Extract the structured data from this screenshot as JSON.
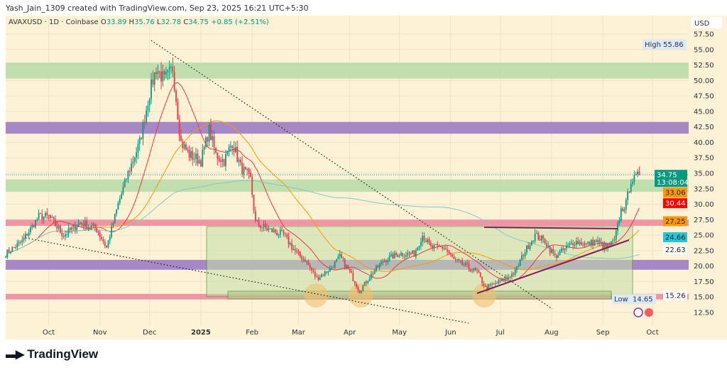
{
  "header": {
    "credit": "Yash_Jain_1309 created with TradingView.com, Sep 23, 2025 16:21 UTC+5:30"
  },
  "legend": {
    "symbol": "AVAXUSD · 1D · Coinbase",
    "o_label": "O",
    "o": "33.89",
    "h_label": "H",
    "h": "35.76",
    "l_label": "L",
    "l": "32.78",
    "c_label": "C",
    "c": "34.75",
    "change": "+0.85 (+2.51%)"
  },
  "brand": {
    "name": "TradingView",
    "icon": "tradingview-logo"
  },
  "colors": {
    "bg": "#fdf1d6",
    "up": "#089981",
    "down": "#f23645",
    "green_zone": "#b9dcaa",
    "purple_zone": "#9c7cc4",
    "pink_zone": "#f08ba0",
    "range_box": "#c6dfa8"
  },
  "chart_data": {
    "type": "candlestick",
    "currency": "USD",
    "ylim": [
      11,
      60
    ],
    "y_ticks": [
      "57.50",
      "55.00",
      "52.50",
      "50.00",
      "47.50",
      "45.00",
      "42.50",
      "40.00",
      "37.50",
      "35.00",
      "32.50",
      "30.00",
      "27.50",
      "25.00",
      "22.50",
      "20.00",
      "17.50",
      "15.00",
      "12.50"
    ],
    "y_tick_values": [
      57.5,
      55,
      52.5,
      50,
      47.5,
      45,
      42.5,
      40,
      37.5,
      35,
      32.5,
      30,
      27.5,
      25,
      22.5,
      20,
      17.5,
      15,
      12.5
    ],
    "x_ticks": [
      {
        "label": "Oct",
        "date": "2024-10-01"
      },
      {
        "label": "Nov",
        "date": "2024-11-01"
      },
      {
        "label": "Dec",
        "date": "2024-12-01"
      },
      {
        "label": "2025",
        "date": "2025-01-01"
      },
      {
        "label": "Feb",
        "date": "2025-02-01"
      },
      {
        "label": "Mar",
        "date": "2025-03-01"
      },
      {
        "label": "Apr",
        "date": "2025-04-01"
      },
      {
        "label": "May",
        "date": "2025-05-01"
      },
      {
        "label": "Jun",
        "date": "2025-06-01"
      },
      {
        "label": "Jul",
        "date": "2025-07-01"
      },
      {
        "label": "Aug",
        "date": "2025-08-01"
      },
      {
        "label": "Sep",
        "date": "2025-09-01"
      },
      {
        "label": "Oct",
        "date": "2025-10-01"
      }
    ],
    "xlim": [
      "2024-09-05",
      "2025-10-28"
    ],
    "close_path": [
      [
        "2024-09-05",
        22
      ],
      [
        "2024-09-15",
        24
      ],
      [
        "2024-09-25",
        28
      ],
      [
        "2024-10-01",
        28
      ],
      [
        "2024-10-10",
        25
      ],
      [
        "2024-10-20",
        27
      ],
      [
        "2024-10-30",
        26
      ],
      [
        "2024-11-05",
        23
      ],
      [
        "2024-11-12",
        30
      ],
      [
        "2024-11-18",
        35
      ],
      [
        "2024-11-25",
        40
      ],
      [
        "2024-12-01",
        48
      ],
      [
        "2024-12-05",
        52
      ],
      [
        "2024-12-10",
        50
      ],
      [
        "2024-12-15",
        52
      ],
      [
        "2024-12-20",
        40
      ],
      [
        "2024-12-25",
        38
      ],
      [
        "2025-01-01",
        37
      ],
      [
        "2025-01-06",
        42
      ],
      [
        "2025-01-10",
        38
      ],
      [
        "2025-01-15",
        37
      ],
      [
        "2025-01-20",
        40
      ],
      [
        "2025-01-25",
        36
      ],
      [
        "2025-01-31",
        34
      ],
      [
        "2025-02-03",
        27
      ],
      [
        "2025-02-10",
        26
      ],
      [
        "2025-02-20",
        25
      ],
      [
        "2025-02-28",
        22
      ],
      [
        "2025-03-05",
        21
      ],
      [
        "2025-03-12",
        18
      ],
      [
        "2025-03-20",
        19.5
      ],
      [
        "2025-03-26",
        21.5
      ],
      [
        "2025-04-01",
        19
      ],
      [
        "2025-04-07",
        16
      ],
      [
        "2025-04-15",
        19
      ],
      [
        "2025-04-22",
        21
      ],
      [
        "2025-05-01",
        22
      ],
      [
        "2025-05-10",
        22
      ],
      [
        "2025-05-15",
        25
      ],
      [
        "2025-05-20",
        23
      ],
      [
        "2025-05-28",
        23
      ],
      [
        "2025-06-03",
        21
      ],
      [
        "2025-06-10",
        20
      ],
      [
        "2025-06-17",
        19
      ],
      [
        "2025-06-22",
        16.5
      ],
      [
        "2025-07-01",
        17.5
      ],
      [
        "2025-07-10",
        19
      ],
      [
        "2025-07-15",
        22
      ],
      [
        "2025-07-22",
        25
      ],
      [
        "2025-07-28",
        24
      ],
      [
        "2025-08-03",
        21.5
      ],
      [
        "2025-08-10",
        23
      ],
      [
        "2025-08-15",
        24
      ],
      [
        "2025-08-22",
        23.5
      ],
      [
        "2025-08-28",
        24
      ],
      [
        "2025-09-03",
        23
      ],
      [
        "2025-09-08",
        24
      ],
      [
        "2025-09-12",
        29
      ],
      [
        "2025-09-15",
        30
      ],
      [
        "2025-09-18",
        34
      ],
      [
        "2025-09-20",
        34
      ],
      [
        "2025-09-23",
        34.75
      ]
    ],
    "zones": [
      {
        "type": "green",
        "from": 50.3,
        "to": 52.9
      },
      {
        "type": "purple",
        "from": 41.4,
        "to": 43.3
      },
      {
        "type": "green",
        "from": 32,
        "to": 34
      },
      {
        "type": "pink",
        "from": 26.5,
        "to": 27.5
      },
      {
        "type": "purple",
        "from": 19.4,
        "to": 21
      },
      {
        "type": "pink",
        "from": 14.6,
        "to": 15.5
      }
    ],
    "range_box": {
      "start": "2025-01-05",
      "end": "2025-09-18",
      "low": 15.1,
      "high": 26.4
    },
    "price_labels": [
      {
        "value": "34.75",
        "sub": "13:08:04",
        "color": "#089981",
        "price": 34.75
      },
      {
        "value": "33.06",
        "color": "#ff9800",
        "price": 33.06
      },
      {
        "value": "30.44",
        "color": "#ff0000",
        "price": 30.44
      },
      {
        "value": "27.25",
        "color": "#ff9800",
        "price": 27.25
      },
      {
        "value": "24.66",
        "color": "#26c6da",
        "price": 24.66
      },
      {
        "value": "22.63",
        "color": "#ffffff",
        "price": 22.63
      },
      {
        "value": "15.26",
        "color": "#ffffff",
        "price": 15.26
      }
    ],
    "high": {
      "label": "High",
      "value": "55.86",
      "price": 55.86
    },
    "low": {
      "label": "Low",
      "value": "14.65",
      "price": 14.65
    },
    "moving_averages": [
      {
        "color": "#f23645",
        "period": 20
      },
      {
        "color": "#ff9800",
        "period": 50
      },
      {
        "color": "#80cbc4",
        "period": 200
      }
    ]
  }
}
